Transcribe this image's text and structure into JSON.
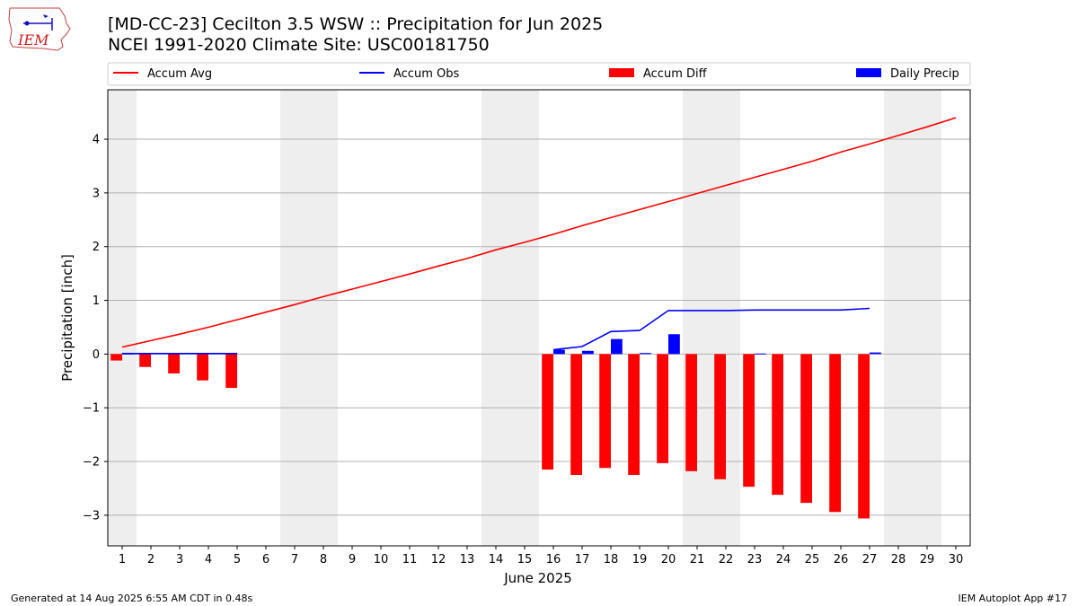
{
  "title": "[MD-CC-23] Cecilton 3.5 WSW :: Precipitation for Jun 2025",
  "subtitle": "NCEI 1991-2020 Climate Site: USC00181750",
  "logo_text": "IEM",
  "footer_left": "Generated at 14 Aug 2025 6:55 AM CDT in 0.48s",
  "footer_right": "IEM Autoplot App #17",
  "colors": {
    "accum_avg": "#ff0000",
    "accum_obs": "#0000ff",
    "accum_diff": "#ff0000",
    "daily_precip": "#0000ff",
    "weekend_shade": "#eeeeee",
    "grid": "#b0b0b0"
  },
  "chart_data": {
    "type": "bar",
    "xlabel": "June 2025",
    "ylabel": "Precipitation [inch]",
    "xlim": [
      0.5,
      30.5
    ],
    "ylim": [
      -3.57,
      4.92
    ],
    "yticks": [
      -3,
      -2,
      -1,
      0,
      1,
      2,
      3,
      4
    ],
    "ytick_labels": [
      "−3",
      "−2",
      "−1",
      "0",
      "1",
      "2",
      "3",
      "4"
    ],
    "x": [
      1,
      2,
      3,
      4,
      5,
      6,
      7,
      8,
      9,
      10,
      11,
      12,
      13,
      14,
      15,
      16,
      17,
      18,
      19,
      20,
      21,
      22,
      23,
      24,
      25,
      26,
      27,
      28,
      29,
      30
    ],
    "weekend_days": [
      1,
      7,
      8,
      14,
      15,
      21,
      22,
      28,
      29
    ],
    "grid": "horizontal",
    "legend_position": "top",
    "legend": [
      "Accum Avg",
      "Accum Obs",
      "Accum Diff",
      "Daily Precip"
    ],
    "series": [
      {
        "name": "Accum Avg",
        "type": "line",
        "x": [
          1,
          2,
          3,
          4,
          5,
          6,
          7,
          8,
          9,
          10,
          11,
          12,
          13,
          14,
          15,
          16,
          17,
          18,
          19,
          20,
          21,
          22,
          23,
          24,
          25,
          26,
          27,
          28,
          29,
          30
        ],
        "values": [
          0.13,
          0.25,
          0.37,
          0.5,
          0.64,
          0.78,
          0.92,
          1.07,
          1.21,
          1.35,
          1.49,
          1.64,
          1.78,
          1.94,
          2.08,
          2.23,
          2.39,
          2.54,
          2.69,
          2.84,
          2.99,
          3.14,
          3.29,
          3.44,
          3.59,
          3.76,
          3.91,
          4.07,
          4.23,
          4.4
        ]
      },
      {
        "name": "Accum Obs",
        "type": "line",
        "x": [
          1,
          2,
          3,
          4,
          5,
          16,
          17,
          18,
          19,
          20,
          21,
          22,
          23,
          24,
          25,
          26,
          27
        ],
        "values": [
          0.01,
          0.01,
          0.01,
          0.01,
          0.01,
          0.08,
          0.14,
          0.42,
          0.44,
          0.81,
          0.81,
          0.81,
          0.82,
          0.82,
          0.82,
          0.82,
          0.85
        ]
      },
      {
        "name": "Accum Diff",
        "type": "bar",
        "x": [
          1,
          2,
          3,
          4,
          5,
          16,
          17,
          18,
          19,
          20,
          21,
          22,
          23,
          24,
          25,
          26,
          27
        ],
        "values": [
          -0.12,
          -0.24,
          -0.36,
          -0.49,
          -0.63,
          -2.15,
          -2.25,
          -2.12,
          -2.25,
          -2.03,
          -2.18,
          -2.33,
          -2.47,
          -2.62,
          -2.77,
          -2.94,
          -3.06
        ]
      },
      {
        "name": "Daily Precip",
        "type": "bar",
        "x": [
          1,
          2,
          3,
          4,
          5,
          16,
          17,
          18,
          19,
          20,
          21,
          22,
          23,
          24,
          25,
          26,
          27
        ],
        "values": [
          0.01,
          0.0,
          0.0,
          0.0,
          0.0,
          0.08,
          0.06,
          0.28,
          0.02,
          0.37,
          0.0,
          0.0,
          0.01,
          0.0,
          0.0,
          0.0,
          0.03
        ]
      }
    ]
  }
}
